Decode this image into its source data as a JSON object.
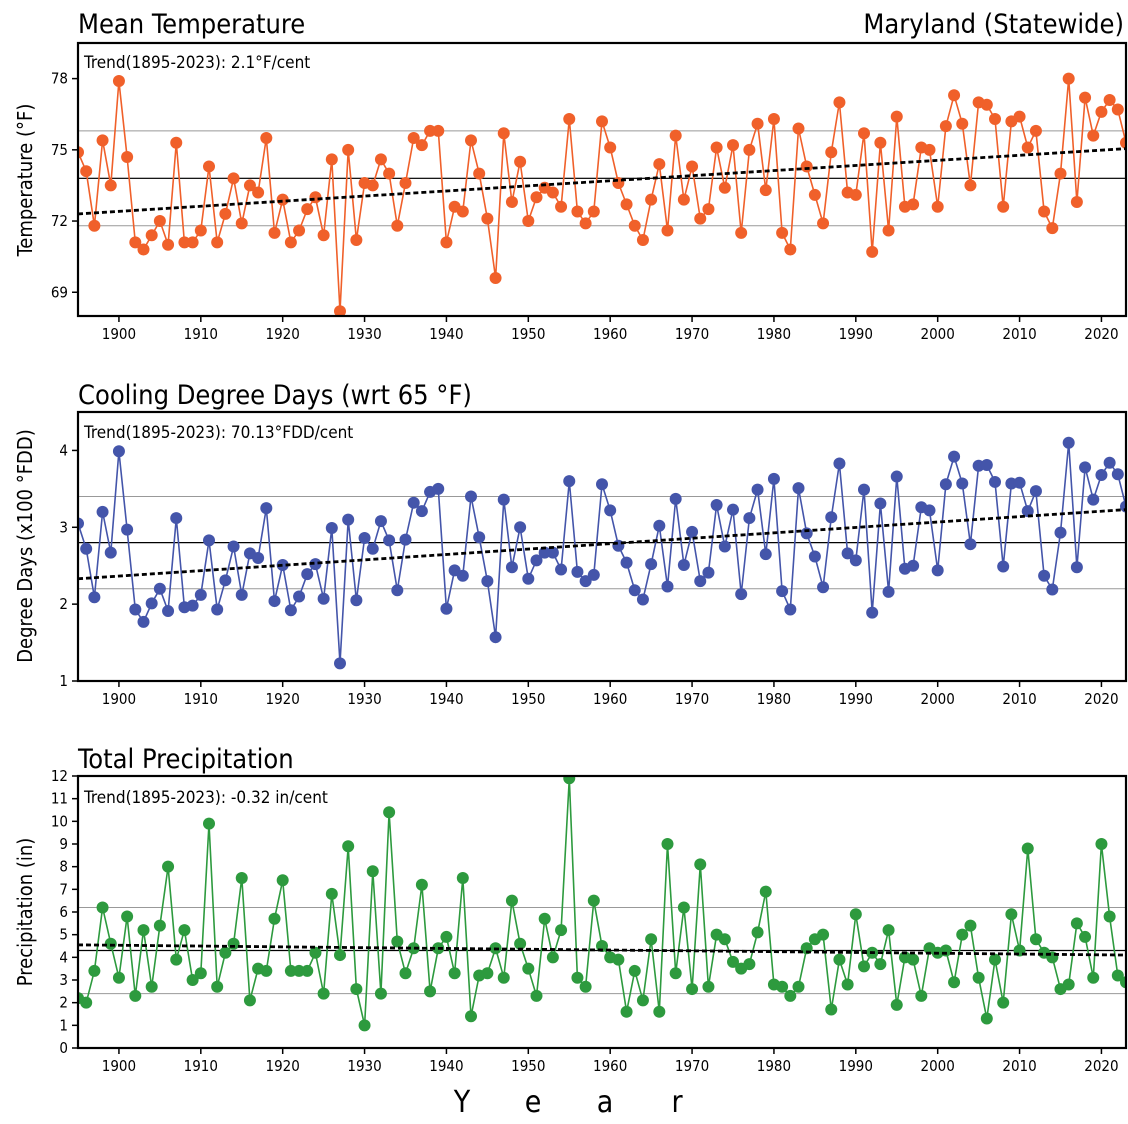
{
  "region": "Maryland (Statewide)",
  "x_axis_label_letters": [
    "Y",
    "e",
    "a",
    "r"
  ],
  "chart_data": [
    {
      "type": "line",
      "title": "Mean Temperature",
      "trend_text": "Trend(1895-2023):  2.1°F/cent",
      "ylabel": "Temperature (°F)",
      "xlim": [
        1895,
        2023
      ],
      "ylim": [
        68,
        79.5
      ],
      "yticks": [
        69,
        72,
        75,
        78
      ],
      "gridlines": [
        71.8,
        73.8,
        75.8
      ],
      "mean_line": 73.8,
      "xticks": [
        1900,
        1910,
        1920,
        1930,
        1940,
        1950,
        1960,
        1970,
        1980,
        1990,
        2000,
        2010,
        2020
      ],
      "color": "#f0602a",
      "trend_line": {
        "x": [
          1895,
          2023
        ],
        "y": [
          72.3,
          75.05
        ]
      },
      "x": [
        1895,
        1896,
        1897,
        1898,
        1899,
        1900,
        1901,
        1902,
        1903,
        1904,
        1905,
        1906,
        1907,
        1908,
        1909,
        1910,
        1911,
        1912,
        1913,
        1914,
        1915,
        1916,
        1917,
        1918,
        1919,
        1920,
        1921,
        1922,
        1923,
        1924,
        1925,
        1926,
        1927,
        1928,
        1929,
        1930,
        1931,
        1932,
        1933,
        1934,
        1935,
        1936,
        1937,
        1938,
        1939,
        1940,
        1941,
        1942,
        1943,
        1944,
        1945,
        1946,
        1947,
        1948,
        1949,
        1950,
        1951,
        1952,
        1953,
        1954,
        1955,
        1956,
        1957,
        1958,
        1959,
        1960,
        1961,
        1962,
        1963,
        1964,
        1965,
        1966,
        1967,
        1968,
        1969,
        1970,
        1971,
        1972,
        1973,
        1974,
        1975,
        1976,
        1977,
        1978,
        1979,
        1980,
        1981,
        1982,
        1983,
        1984,
        1985,
        1986,
        1987,
        1988,
        1989,
        1990,
        1991,
        1992,
        1993,
        1994,
        1995,
        1996,
        1997,
        1998,
        1999,
        2000,
        2001,
        2002,
        2003,
        2004,
        2005,
        2006,
        2007,
        2008,
        2009,
        2010,
        2011,
        2012,
        2013,
        2014,
        2015,
        2016,
        2017,
        2018,
        2019,
        2020,
        2021,
        2022,
        2023
      ],
      "values": [
        74.9,
        74.1,
        71.8,
        75.4,
        73.5,
        77.9,
        74.7,
        71.1,
        70.8,
        71.4,
        72.0,
        71.0,
        75.3,
        71.1,
        71.1,
        71.6,
        74.3,
        71.1,
        72.3,
        73.8,
        71.9,
        73.5,
        73.2,
        75.5,
        71.5,
        72.9,
        71.1,
        71.6,
        72.5,
        73.0,
        71.4,
        74.6,
        68.2,
        75.0,
        71.2,
        73.6,
        73.5,
        74.6,
        74.0,
        71.8,
        73.6,
        75.5,
        75.2,
        75.8,
        75.8,
        71.1,
        72.6,
        72.4,
        75.4,
        74.0,
        72.1,
        69.6,
        75.7,
        72.8,
        74.5,
        72.0,
        73.0,
        73.4,
        73.2,
        72.6,
        76.3,
        72.4,
        71.9,
        72.4,
        76.2,
        75.1,
        73.6,
        72.7,
        71.8,
        71.2,
        72.9,
        74.4,
        71.6,
        75.6,
        72.9,
        74.3,
        72.1,
        72.5,
        75.1,
        73.4,
        75.2,
        71.5,
        75.0,
        76.1,
        73.3,
        76.3,
        71.5,
        70.8,
        75.9,
        74.3,
        73.1,
        71.9,
        74.9,
        77.0,
        73.2,
        73.1,
        75.7,
        70.7,
        75.3,
        71.6,
        76.4,
        72.6,
        72.7,
        75.1,
        75.0,
        72.6,
        76.0,
        77.3,
        76.1,
        73.5,
        77.0,
        76.9,
        76.3,
        72.6,
        76.2,
        76.4,
        75.1,
        75.8,
        72.4,
        71.7,
        74.0,
        78.0,
        72.8,
        77.2,
        75.6,
        76.6,
        77.1,
        76.7,
        75.3
      ]
    },
    {
      "type": "line",
      "title": "Cooling Degree Days (wrt 65 °F)",
      "trend_text": "Trend(1895-2023): 70.13°FDD/cent",
      "ylabel": "Degree Days (x100 °FDD)",
      "xlim": [
        1895,
        2023
      ],
      "ylim": [
        1,
        4.5
      ],
      "yticks": [
        1,
        2,
        3,
        4
      ],
      "gridlines": [
        2.2,
        3.4
      ],
      "mean_line": 2.8,
      "xticks": [
        1900,
        1910,
        1920,
        1930,
        1940,
        1950,
        1960,
        1970,
        1980,
        1990,
        2000,
        2010,
        2020
      ],
      "color": "#4455aa",
      "trend_line": {
        "x": [
          1895,
          2023
        ],
        "y": [
          2.33,
          3.23
        ]
      },
      "x": [
        1895,
        1896,
        1897,
        1898,
        1899,
        1900,
        1901,
        1902,
        1903,
        1904,
        1905,
        1906,
        1907,
        1908,
        1909,
        1910,
        1911,
        1912,
        1913,
        1914,
        1915,
        1916,
        1917,
        1918,
        1919,
        1920,
        1921,
        1922,
        1923,
        1924,
        1925,
        1926,
        1927,
        1928,
        1929,
        1930,
        1931,
        1932,
        1933,
        1934,
        1935,
        1936,
        1937,
        1938,
        1939,
        1940,
        1941,
        1942,
        1943,
        1944,
        1945,
        1946,
        1947,
        1948,
        1949,
        1950,
        1951,
        1952,
        1953,
        1954,
        1955,
        1956,
        1957,
        1958,
        1959,
        1960,
        1961,
        1962,
        1963,
        1964,
        1965,
        1966,
        1967,
        1968,
        1969,
        1970,
        1971,
        1972,
        1973,
        1974,
        1975,
        1976,
        1977,
        1978,
        1979,
        1980,
        1981,
        1982,
        1983,
        1984,
        1985,
        1986,
        1987,
        1988,
        1989,
        1990,
        1991,
        1992,
        1993,
        1994,
        1995,
        1996,
        1997,
        1998,
        1999,
        2000,
        2001,
        2002,
        2003,
        2004,
        2005,
        2006,
        2007,
        2008,
        2009,
        2010,
        2011,
        2012,
        2013,
        2014,
        2015,
        2016,
        2017,
        2018,
        2019,
        2020,
        2021,
        2022,
        2023
      ],
      "values": [
        3.05,
        2.72,
        2.09,
        3.2,
        2.67,
        3.99,
        2.97,
        1.93,
        1.77,
        2.01,
        2.2,
        1.91,
        3.12,
        1.96,
        1.98,
        2.12,
        2.83,
        1.93,
        2.31,
        2.75,
        2.12,
        2.66,
        2.6,
        3.25,
        2.04,
        2.51,
        1.92,
        2.1,
        2.39,
        2.52,
        2.07,
        2.99,
        1.23,
        3.1,
        2.05,
        2.86,
        2.72,
        3.08,
        2.83,
        2.18,
        2.84,
        3.32,
        3.21,
        3.46,
        3.5,
        1.94,
        2.44,
        2.37,
        3.4,
        2.87,
        2.3,
        1.57,
        3.36,
        2.48,
        3.0,
        2.33,
        2.57,
        2.67,
        2.67,
        2.45,
        3.6,
        2.42,
        2.3,
        2.38,
        3.56,
        3.22,
        2.76,
        2.54,
        2.18,
        2.06,
        2.52,
        3.02,
        2.23,
        3.37,
        2.51,
        2.94,
        2.3,
        2.41,
        3.29,
        2.75,
        3.23,
        2.13,
        3.12,
        3.49,
        2.65,
        3.63,
        2.17,
        1.93,
        3.51,
        2.92,
        2.62,
        2.22,
        3.13,
        3.83,
        2.66,
        2.57,
        3.49,
        1.89,
        3.31,
        2.16,
        3.66,
        2.46,
        2.5,
        3.26,
        3.22,
        2.44,
        3.56,
        3.92,
        3.57,
        2.78,
        3.8,
        3.81,
        3.59,
        2.49,
        3.57,
        3.58,
        3.21,
        3.47,
        2.37,
        2.19,
        2.93,
        4.1,
        2.48,
        3.78,
        3.36,
        3.68,
        3.84,
        3.69,
        3.27
      ]
    },
    {
      "type": "line",
      "title": "Total Precipitation",
      "trend_text": "Trend(1895-2023): -0.32 in/cent",
      "ylabel": "Precipitation (in)",
      "xlim": [
        1895,
        2023
      ],
      "ylim": [
        0,
        12
      ],
      "yticks": [
        0,
        1,
        2,
        3,
        4,
        5,
        6,
        7,
        8,
        9,
        10,
        11,
        12
      ],
      "gridlines": [
        2.4,
        6.2
      ],
      "mean_line": 4.3,
      "xticks": [
        1900,
        1910,
        1920,
        1930,
        1940,
        1950,
        1960,
        1970,
        1980,
        1990,
        2000,
        2010,
        2020
      ],
      "color": "#2d9a3e",
      "trend_line": {
        "x": [
          1895,
          2023
        ],
        "y": [
          4.55,
          4.1
        ]
      },
      "x": [
        1895,
        1896,
        1897,
        1898,
        1899,
        1900,
        1901,
        1902,
        1903,
        1904,
        1905,
        1906,
        1907,
        1908,
        1909,
        1910,
        1911,
        1912,
        1913,
        1914,
        1915,
        1916,
        1917,
        1918,
        1919,
        1920,
        1921,
        1922,
        1923,
        1924,
        1925,
        1926,
        1927,
        1928,
        1929,
        1930,
        1931,
        1932,
        1933,
        1934,
        1935,
        1936,
        1937,
        1938,
        1939,
        1940,
        1941,
        1942,
        1943,
        1944,
        1945,
        1946,
        1947,
        1948,
        1949,
        1950,
        1951,
        1952,
        1953,
        1954,
        1955,
        1956,
        1957,
        1958,
        1959,
        1960,
        1961,
        1962,
        1963,
        1964,
        1965,
        1966,
        1967,
        1968,
        1969,
        1970,
        1971,
        1972,
        1973,
        1974,
        1975,
        1976,
        1977,
        1978,
        1979,
        1980,
        1981,
        1982,
        1983,
        1984,
        1985,
        1986,
        1987,
        1988,
        1989,
        1990,
        1991,
        1992,
        1993,
        1994,
        1995,
        1996,
        1997,
        1998,
        1999,
        2000,
        2001,
        2002,
        2003,
        2004,
        2005,
        2006,
        2007,
        2008,
        2009,
        2010,
        2011,
        2012,
        2013,
        2014,
        2015,
        2016,
        2017,
        2018,
        2019,
        2020,
        2021,
        2022,
        2023
      ],
      "values": [
        2.2,
        2.0,
        3.4,
        6.2,
        4.6,
        3.1,
        5.8,
        2.3,
        5.2,
        2.7,
        5.4,
        8.0,
        3.9,
        5.2,
        3.0,
        3.3,
        9.9,
        2.7,
        4.2,
        4.6,
        7.5,
        2.1,
        3.5,
        3.4,
        5.7,
        7.4,
        3.4,
        3.4,
        3.4,
        4.2,
        2.4,
        6.8,
        4.1,
        8.9,
        2.6,
        1.0,
        7.8,
        2.4,
        10.4,
        4.7,
        3.3,
        4.4,
        7.2,
        2.5,
        4.4,
        4.9,
        3.3,
        7.5,
        1.4,
        3.2,
        3.3,
        4.4,
        3.1,
        6.5,
        4.6,
        3.5,
        2.3,
        5.7,
        4.0,
        5.2,
        11.9,
        3.1,
        2.7,
        6.5,
        4.5,
        4.0,
        3.9,
        1.6,
        3.4,
        2.1,
        4.8,
        1.6,
        9.0,
        3.3,
        6.2,
        2.6,
        8.1,
        2.7,
        5.0,
        4.8,
        3.8,
        3.5,
        3.7,
        5.1,
        6.9,
        2.8,
        2.7,
        2.3,
        2.7,
        4.4,
        4.8,
        5.0,
        1.7,
        3.9,
        2.8,
        5.9,
        3.6,
        4.2,
        3.7,
        5.2,
        1.9,
        4.0,
        3.9,
        2.3,
        4.4,
        4.2,
        4.3,
        2.9,
        5.0,
        5.4,
        3.1,
        1.3,
        3.9,
        2.0,
        5.9,
        4.3,
        8.8,
        4.8,
        4.2,
        4.0,
        2.6,
        2.8,
        5.5,
        4.9,
        3.1,
        9.0,
        5.8,
        3.2,
        2.9
      ]
    }
  ]
}
